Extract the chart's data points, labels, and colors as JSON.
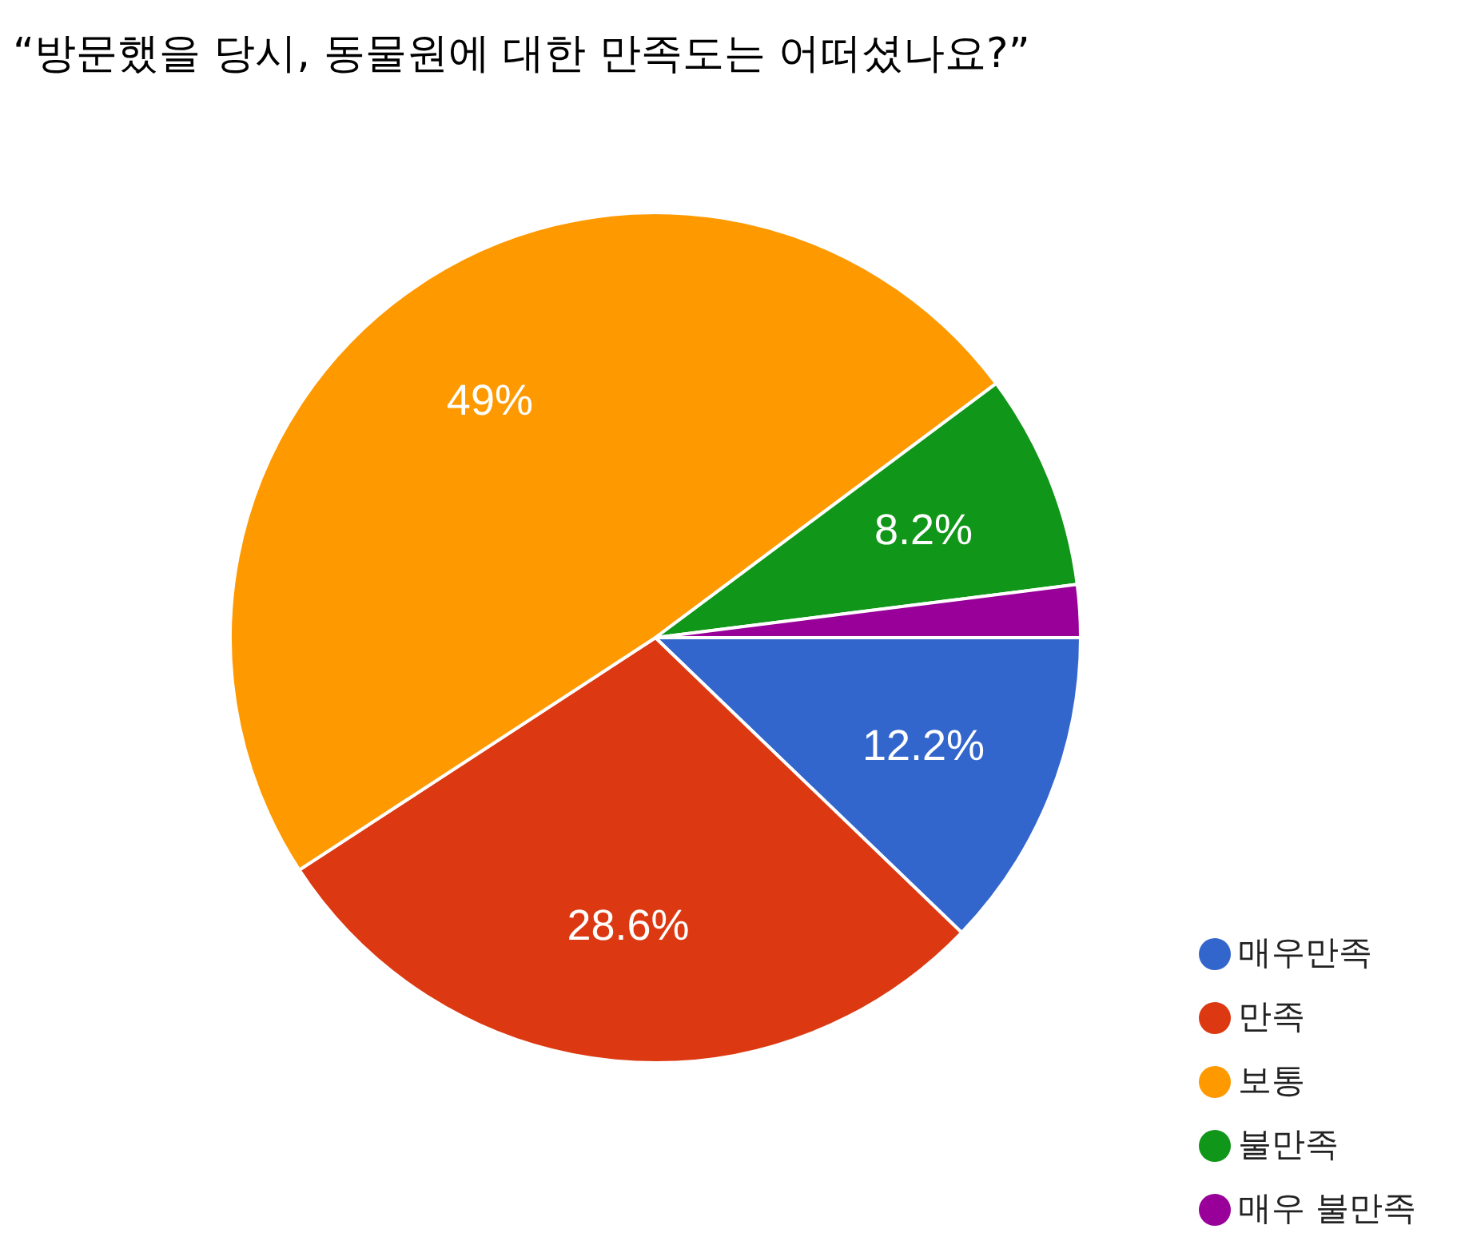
{
  "chart_data": {
    "type": "pie",
    "title": "“방문했을 당시, 동물원에 대한 만족도는 어떠셨나요?”",
    "categories": [
      "매우만족",
      "만족",
      "보통",
      "불만족",
      "매우 불만족"
    ],
    "values": [
      12.2,
      28.6,
      49,
      8.2,
      2.0
    ],
    "value_labels": [
      "12.2%",
      "28.6%",
      "49%",
      "8.2%",
      null
    ],
    "colors": [
      "#3366cc",
      "#dc3912",
      "#ff9900",
      "#109618",
      "#990099"
    ],
    "legend": "bottom right"
  }
}
